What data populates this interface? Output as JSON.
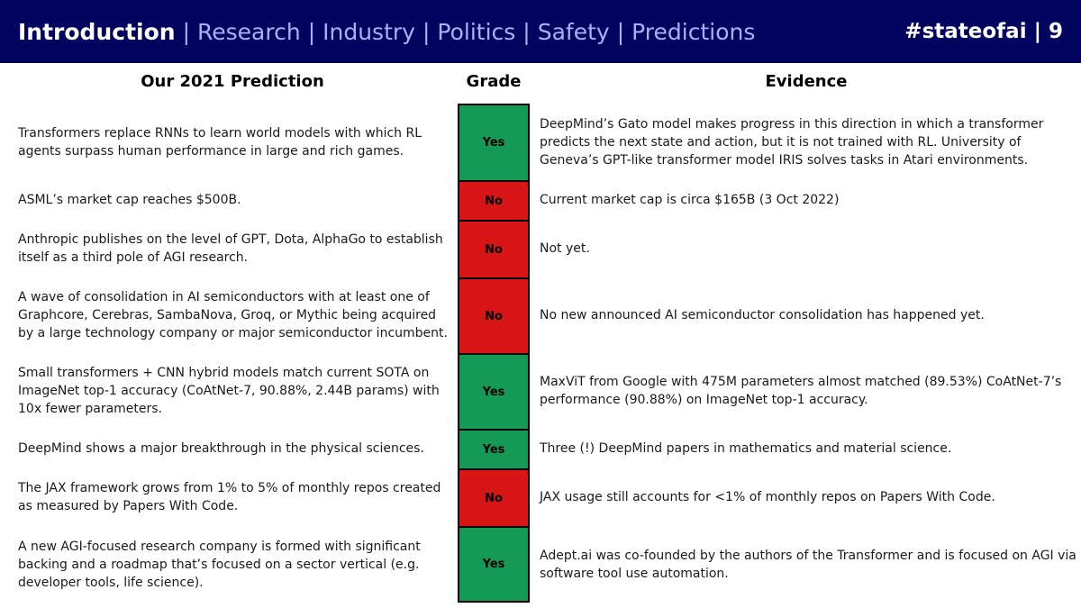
{
  "header": {
    "tabs": [
      {
        "label": "Introduction",
        "active": true
      },
      {
        "label": "Research",
        "active": false
      },
      {
        "label": "Industry",
        "active": false
      },
      {
        "label": "Politics",
        "active": false
      },
      {
        "label": "Safety",
        "active": false
      },
      {
        "label": "Predictions",
        "active": false
      }
    ],
    "separator": "|",
    "brand": "#stateofai | 9"
  },
  "columns": {
    "prediction": "Our 2021 Prediction",
    "grade": "Grade",
    "evidence": "Evidence"
  },
  "rows": [
    {
      "prediction": "Transformers replace RNNs to learn world models with which RL agents surpass human performance in large and rich games.",
      "grade": "Yes",
      "evidence": "DeepMind’s Gato model makes progress in this direction in which a transformer predicts the next state and action, but it is not trained with RL. University of Geneva’s GPT-like transformer model IRIS solves tasks in Atari environments."
    },
    {
      "prediction": "ASML’s market cap reaches $500B.",
      "grade": "No",
      "evidence": "Current market cap is circa $165B (3 Oct 2022)"
    },
    {
      "prediction": "Anthropic publishes on the level of GPT, Dota, AlphaGo to establish itself as a third pole of AGI research.",
      "grade": "No",
      "evidence": "Not yet."
    },
    {
      "prediction": "A wave of consolidation in AI semiconductors with at least one of Graphcore, Cerebras, SambaNova, Groq, or Mythic being acquired by a large technology company or major semiconductor incumbent.",
      "grade": "No",
      "evidence": "No new announced AI semiconductor consolidation has happened yet."
    },
    {
      "prediction": "Small transformers + CNN hybrid models match current SOTA on ImageNet top-1 accuracy (CoAtNet-7, 90.88%, 2.44B params) with 10x fewer parameters.",
      "grade": "Yes",
      "evidence": "MaxViT from Google with 475M parameters almost matched (89.53%) CoAtNet-7’s performance (90.88%) on ImageNet top-1 accuracy."
    },
    {
      "prediction": "DeepMind shows a major breakthrough in the physical sciences.",
      "grade": "Yes",
      "evidence": "Three (!) DeepMind papers in mathematics and material science."
    },
    {
      "prediction": "The JAX framework grows from 1% to 5% of monthly repos created as measured by Papers With Code.",
      "grade": "No",
      "evidence": "JAX usage still accounts for <1% of monthly repos on Papers With Code."
    },
    {
      "prediction": "A new AGI-focused research company is formed with significant backing and a roadmap that’s focused on a sector vertical (e.g. developer tools, life science).",
      "grade": "Yes",
      "evidence": "Adept.ai was co-founded by the authors of the Transformer and is focused on AGI via software tool use automation."
    }
  ],
  "colors": {
    "header_bg": "#02035f",
    "tab_inactive": "#a5b3f6",
    "yes": "#149a54",
    "no": "#d71515"
  }
}
